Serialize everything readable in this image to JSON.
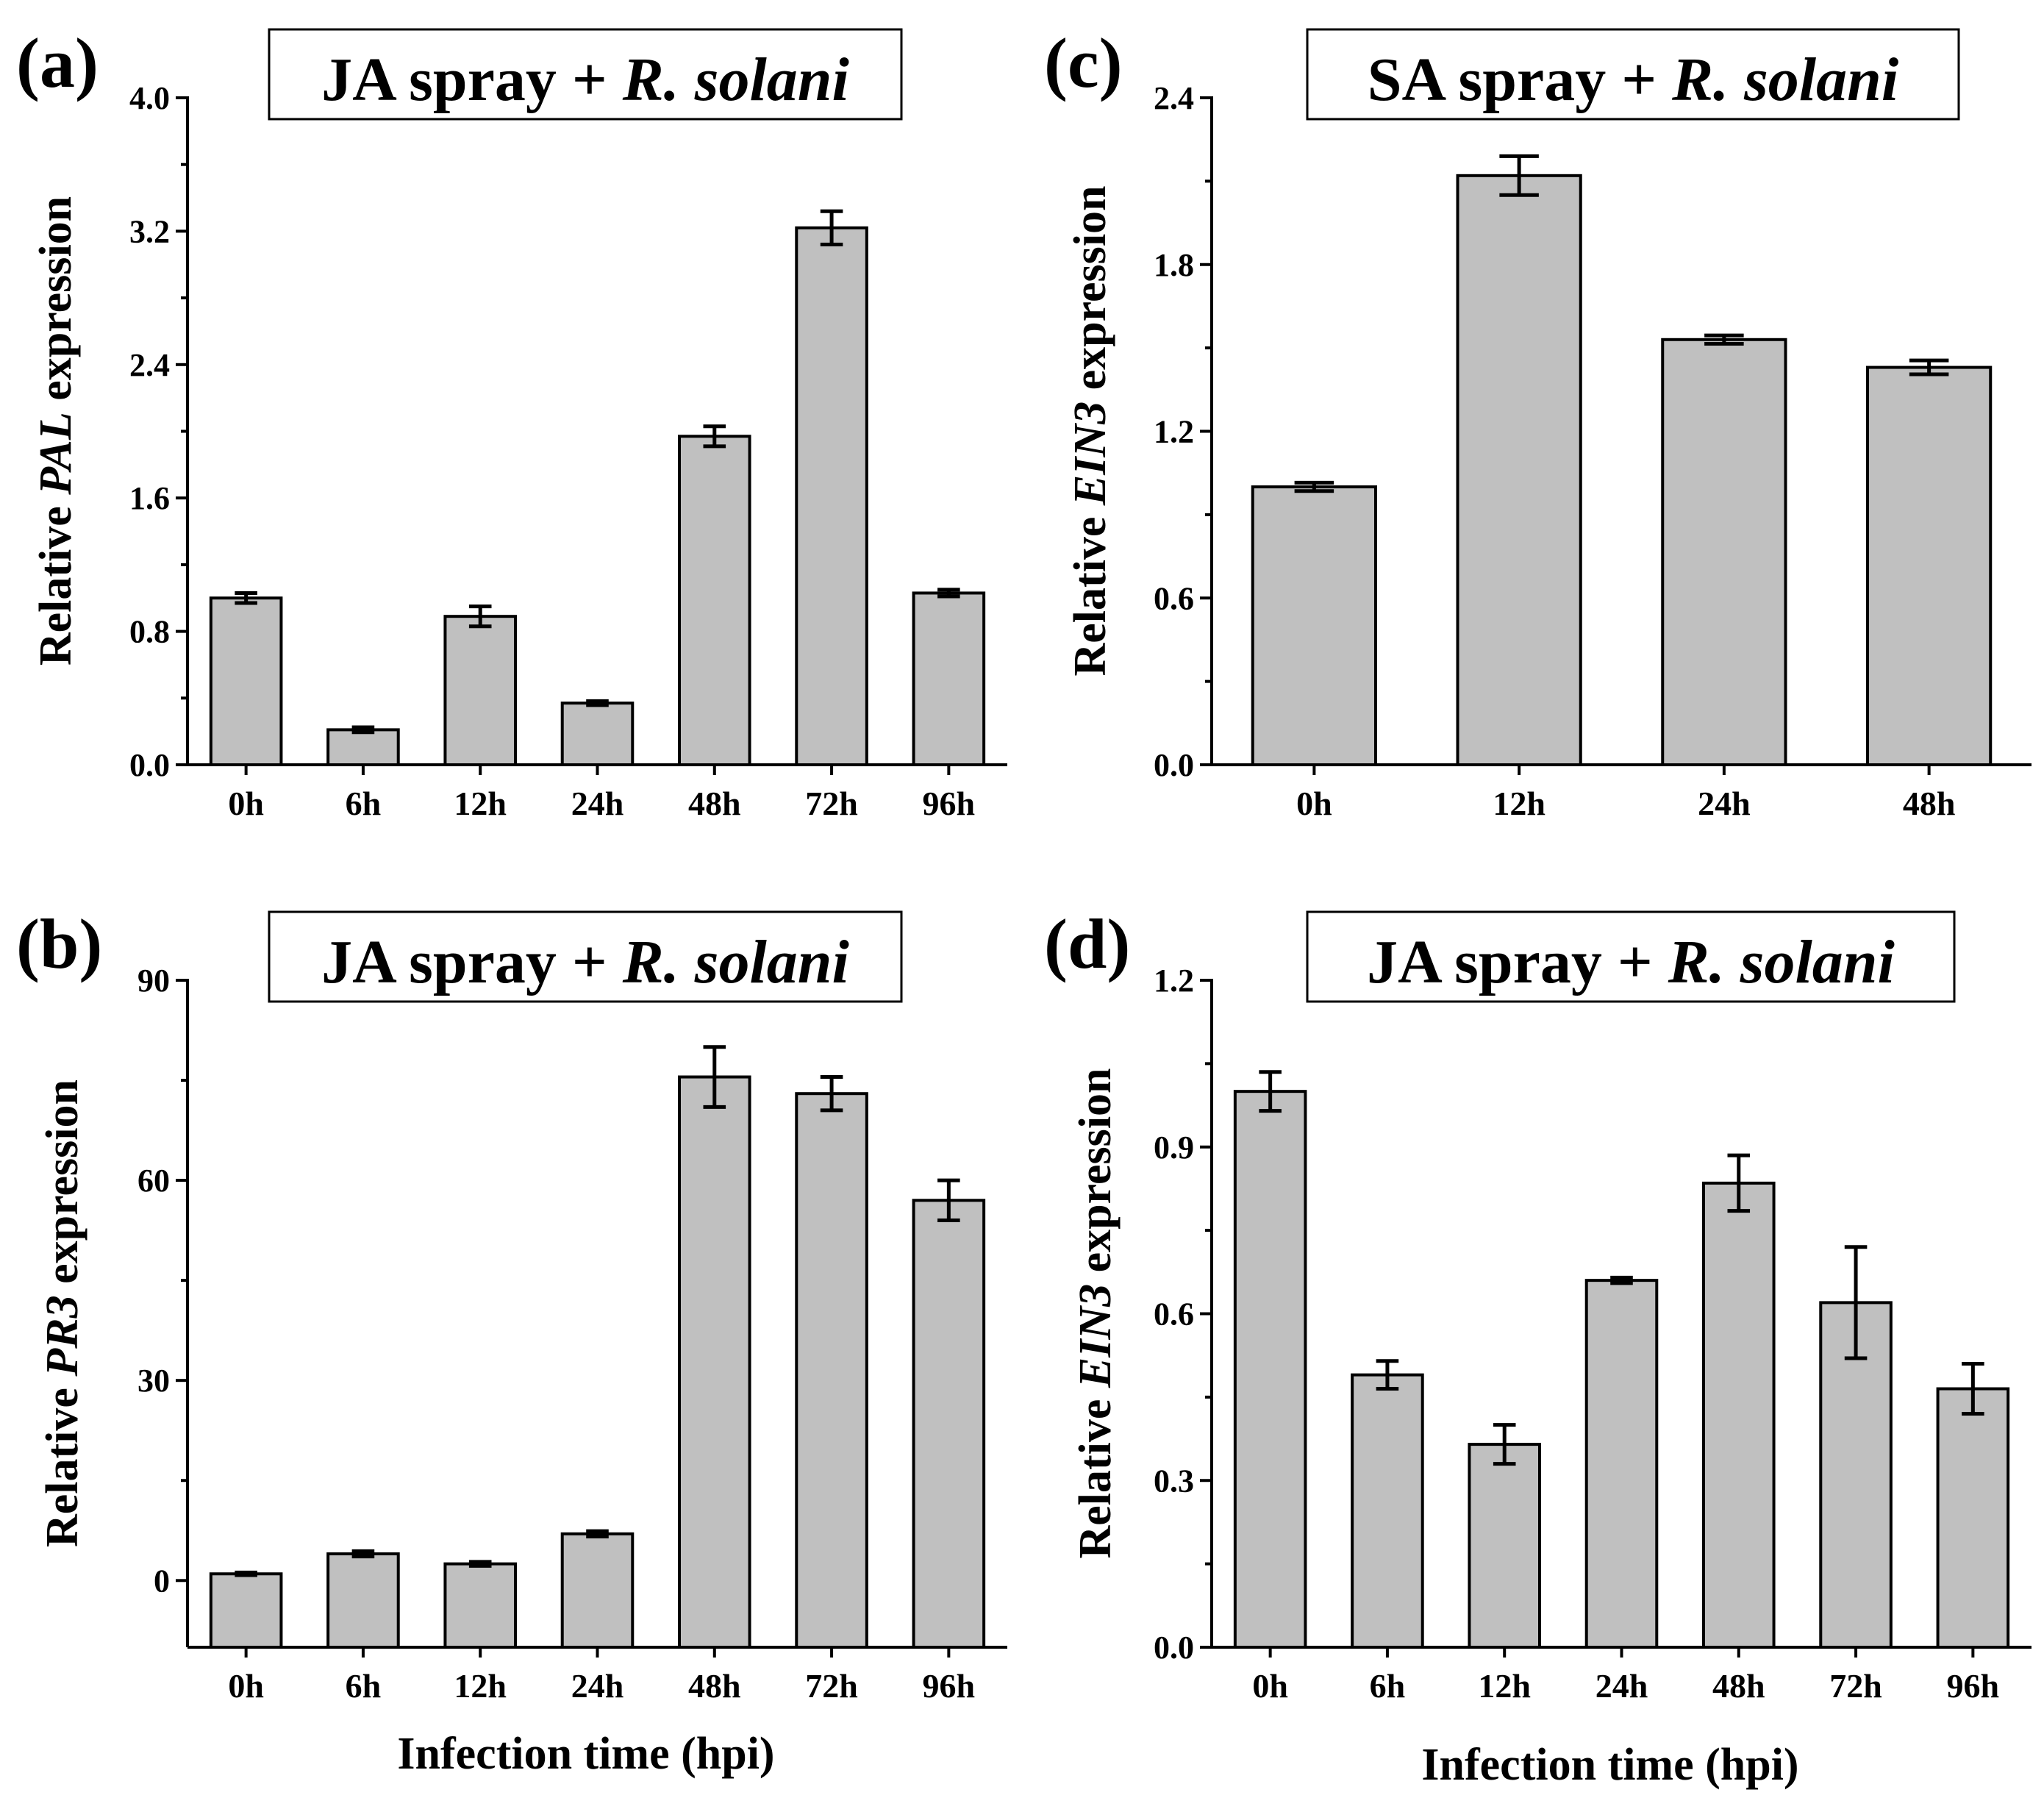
{
  "figure": {
    "background": "#ffffff",
    "bar_color": "#c0c0c0"
  },
  "chart_data": [
    {
      "id": "a",
      "type": "bar",
      "panel_label": "(a)",
      "title_main": "JA spray + ",
      "title_italic": "R. solani",
      "ylabel_prefix": "Relative ",
      "ylabel_gene": "PAL",
      "ylabel_suffix": " expression",
      "xlabel": "",
      "categories": [
        "0h",
        "6h",
        "12h",
        "24h",
        "48h",
        "72h",
        "96h"
      ],
      "values": [
        1.0,
        0.21,
        0.89,
        0.37,
        1.97,
        3.22,
        1.03
      ],
      "errors": [
        0.03,
        0.015,
        0.06,
        0.012,
        0.06,
        0.1,
        0.02
      ],
      "ylim": [
        0,
        4.0
      ],
      "yticks": [
        0.0,
        0.8,
        1.6,
        2.4,
        3.2,
        4.0
      ],
      "ytick_labels": [
        "0.0",
        "0.8",
        "1.6",
        "2.4",
        "3.2",
        "4.0"
      ]
    },
    {
      "id": "b",
      "type": "bar",
      "panel_label": "(b)",
      "title_main": "JA spray + ",
      "title_italic": "R. solani",
      "ylabel_prefix": "Relative ",
      "ylabel_gene": "PR3",
      "ylabel_suffix": " expression",
      "xlabel": "Infection time (hpi)",
      "categories": [
        "0h",
        "6h",
        "12h",
        "24h",
        "48h",
        "72h",
        "96h"
      ],
      "values": [
        1.0,
        4.0,
        2.5,
        7.0,
        75.5,
        73.0,
        57.0
      ],
      "errors": [
        0.2,
        0.4,
        0.3,
        0.4,
        4.5,
        2.5,
        3.0
      ],
      "ylim": [
        -10,
        90
      ],
      "yticks": [
        0,
        30,
        60,
        90
      ],
      "ytick_labels": [
        "0",
        "30",
        "60",
        "90"
      ]
    },
    {
      "id": "c",
      "type": "bar",
      "panel_label": "(c)",
      "title_main": "SA spray + ",
      "title_italic": "R. solani",
      "ylabel_prefix": "Relative ",
      "ylabel_gene": "EIN3",
      "ylabel_suffix": " expression",
      "xlabel": "",
      "categories": [
        "0h",
        "12h",
        "24h",
        "48h"
      ],
      "values": [
        1.0,
        2.12,
        1.53,
        1.43
      ],
      "errors": [
        0.015,
        0.07,
        0.015,
        0.025
      ],
      "ylim": [
        0,
        2.4
      ],
      "yticks": [
        0.0,
        0.6,
        1.2,
        1.8,
        2.4
      ],
      "ytick_labels": [
        "0.0",
        "0.6",
        "1.2",
        "1.8",
        "2.4"
      ]
    },
    {
      "id": "d",
      "type": "bar",
      "panel_label": "(d)",
      "title_main": "JA spray + ",
      "title_italic": "R. solani",
      "ylabel_prefix": "Relative ",
      "ylabel_gene": "EIN3",
      "ylabel_suffix": " expression",
      "xlabel": "Infection time (hpi)",
      "categories": [
        "0h",
        "6h",
        "12h",
        "24h",
        "48h",
        "72h",
        "96h"
      ],
      "values": [
        1.0,
        0.49,
        0.365,
        0.66,
        0.835,
        0.62,
        0.465
      ],
      "errors": [
        0.035,
        0.025,
        0.035,
        0.005,
        0.05,
        0.1,
        0.045
      ],
      "ylim": [
        0,
        1.2
      ],
      "yticks": [
        0.0,
        0.3,
        0.6,
        0.9,
        1.2
      ],
      "ytick_labels": [
        "0.0",
        "0.3",
        "0.6",
        "0.9",
        "1.2"
      ]
    }
  ]
}
